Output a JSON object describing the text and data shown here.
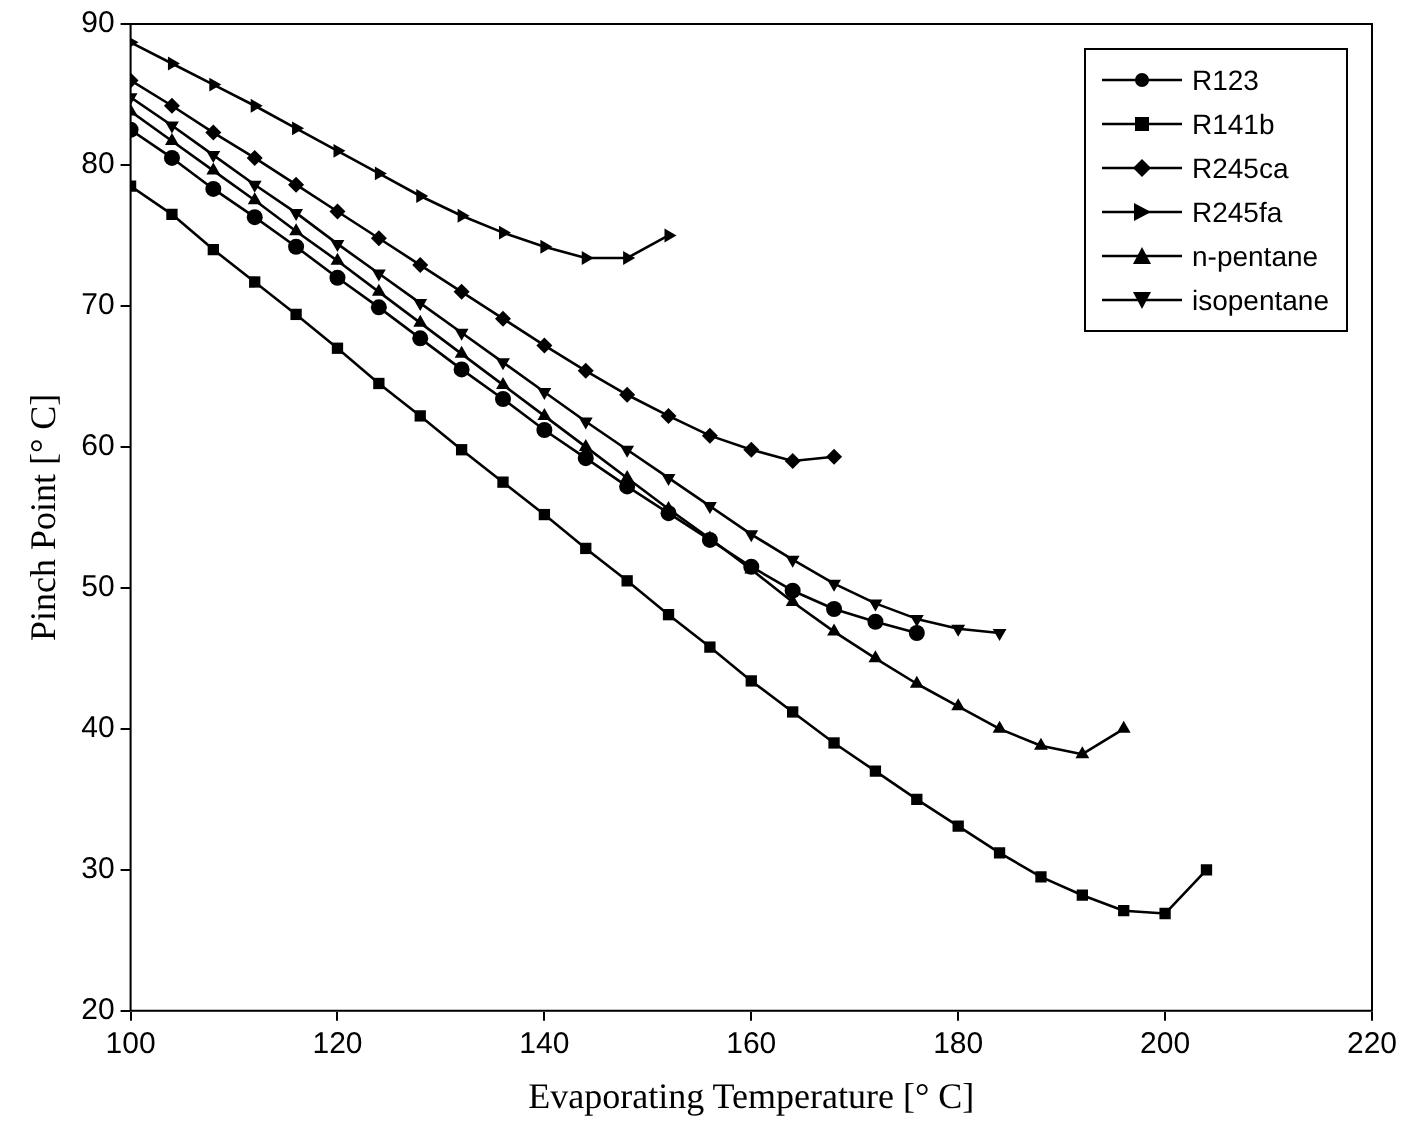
{
  "chart_data": {
    "type": "line",
    "xlabel": "Evaporating Temperature [° C]",
    "ylabel": "Pinch Point [° C]",
    "xlim": [
      100,
      220
    ],
    "xticks": [
      100,
      120,
      140,
      160,
      180,
      200,
      220
    ],
    "ylim": [
      20,
      90
    ],
    "yticks": [
      20,
      30,
      40,
      50,
      60,
      70,
      80,
      90
    ],
    "grid": false,
    "legend": "top right",
    "line_style": "solid",
    "series": [
      {
        "name": "R123",
        "color": "#000000",
        "marker": "circle",
        "x": [
          100,
          104,
          108,
          112,
          116,
          120,
          124,
          128,
          132,
          136,
          140,
          144,
          148,
          152,
          156,
          160,
          164,
          168,
          172,
          176
        ],
        "values": [
          82.5,
          80.5,
          78.3,
          76.3,
          74.2,
          72,
          69.9,
          67.7,
          65.5,
          63.4,
          61.2,
          59.2,
          57.2,
          55.3,
          53.4,
          51.5,
          49.8,
          48.5,
          47.6,
          46.8
        ]
      },
      {
        "name": "R141b",
        "color": "#000000",
        "marker": "square",
        "x": [
          100,
          104,
          108,
          112,
          116,
          120,
          124,
          128,
          132,
          136,
          140,
          144,
          148,
          152,
          156,
          160,
          164,
          168,
          172,
          176,
          180,
          184,
          188,
          192,
          196,
          200,
          204
        ],
        "values": [
          78.5,
          76.5,
          74,
          71.7,
          69.4,
          67,
          64.5,
          62.2,
          59.8,
          57.5,
          55.2,
          52.8,
          50.5,
          48.1,
          45.8,
          43.4,
          41.2,
          39,
          37,
          35,
          33.1,
          31.2,
          29.5,
          28.2,
          27.1,
          26.9,
          30
        ]
      },
      {
        "name": "R245ca",
        "color": "#000000",
        "marker": "diamond",
        "x": [
          100,
          104,
          108,
          112,
          116,
          120,
          124,
          128,
          132,
          136,
          140,
          144,
          148,
          152,
          156,
          160,
          164,
          168
        ],
        "values": [
          86,
          84.2,
          82.3,
          80.5,
          78.6,
          76.7,
          74.8,
          72.9,
          71,
          69.1,
          67.2,
          65.4,
          63.7,
          62.2,
          60.8,
          59.8,
          59,
          59.3
        ]
      },
      {
        "name": "R245fa",
        "color": "#000000",
        "marker": "triangle-right",
        "x": [
          100,
          104,
          108,
          112,
          116,
          120,
          124,
          128,
          132,
          136,
          140,
          144,
          148,
          152
        ],
        "values": [
          88.7,
          87.2,
          85.7,
          84.2,
          82.6,
          81,
          79.4,
          77.8,
          76.4,
          75.2,
          74.2,
          73.4,
          73.4,
          75
        ]
      },
      {
        "name": "n-pentane",
        "color": "#000000",
        "marker": "triangle",
        "x": [
          100,
          104,
          108,
          112,
          116,
          120,
          124,
          128,
          132,
          136,
          140,
          144,
          148,
          152,
          156,
          160,
          164,
          168,
          172,
          176,
          180,
          184,
          188,
          192,
          196
        ],
        "values": [
          83.8,
          81.7,
          79.6,
          77.5,
          75.3,
          73.2,
          71,
          68.8,
          66.6,
          64.4,
          62.2,
          60,
          57.8,
          55.6,
          53.5,
          51.3,
          49,
          46.9,
          45,
          43.2,
          41.6,
          40,
          38.8,
          38.2,
          40
        ]
      },
      {
        "name": "isopentane",
        "color": "#000000",
        "marker": "triangle-down",
        "x": [
          100,
          104,
          108,
          112,
          116,
          120,
          124,
          128,
          132,
          136,
          140,
          144,
          148,
          152,
          156,
          160,
          164,
          168,
          172,
          176,
          180,
          184
        ],
        "values": [
          84.8,
          82.8,
          80.7,
          78.6,
          76.6,
          74.4,
          72.3,
          70.2,
          68.1,
          66,
          63.9,
          61.8,
          59.8,
          57.8,
          55.8,
          53.8,
          52,
          50.3,
          48.9,
          47.8,
          47.1,
          46.8
        ]
      }
    ]
  }
}
